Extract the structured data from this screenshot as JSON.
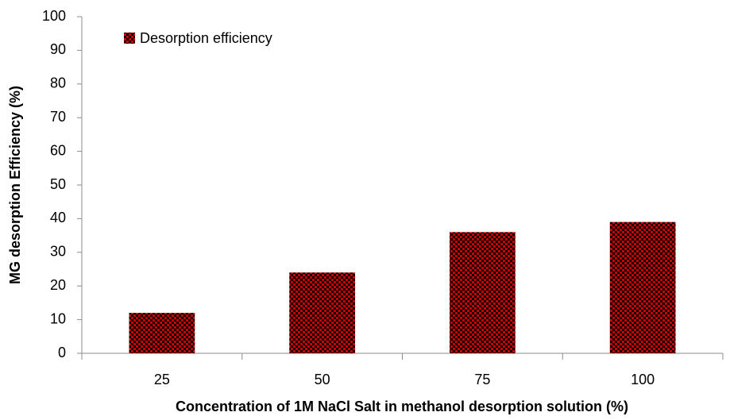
{
  "chart_data": {
    "type": "bar",
    "x_label": "Concentration of 1M NaCl Salt  in methanol desorption solution (%)",
    "y_label": "MG desorption Efficiency (%)",
    "categories": [
      "25",
      "50",
      "75",
      "100"
    ],
    "series": [
      {
        "name": "Desorption efficiency",
        "color": "#cc0000",
        "values": [
          12,
          24,
          36,
          39
        ]
      }
    ],
    "ylim": [
      0,
      100
    ],
    "yticks": [
      0,
      10,
      20,
      30,
      40,
      50,
      60,
      70,
      80,
      90,
      100
    ],
    "grid": false,
    "legend": "upper left"
  }
}
